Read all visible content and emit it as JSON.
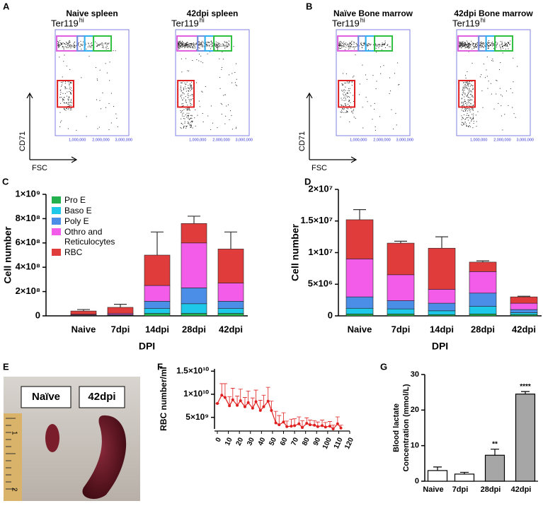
{
  "flow": {
    "panels": [
      "A",
      "B"
    ],
    "plots": [
      {
        "title": "Naive spleen"
      },
      {
        "title": "42dpi spleen"
      },
      {
        "title": "Naïve Bone marrow"
      },
      {
        "title": "42dpi Bone marrow"
      }
    ],
    "gate_label": {
      "text": "Ter119",
      "sup": "hi"
    },
    "xlabel": "FSC",
    "ylabel": "CD71",
    "xticks": [
      "1,000,000",
      "2,000,000",
      "3,000,000"
    ]
  },
  "photo": {
    "panel": "E",
    "labels": [
      "Naïve",
      "42dpi"
    ],
    "ruler": [
      "1",
      "2"
    ]
  },
  "chart_data": [
    {
      "type": "stacked_bar",
      "panel": "C",
      "categories": [
        "Naive",
        "7dpi",
        "14dpi",
        "28dpi",
        "42dpi"
      ],
      "xlabel": "DPI",
      "ylabel": "Cell number",
      "legend": true,
      "ylim": [
        0,
        1000000000
      ],
      "yticks": [
        0,
        {
          "value": 200000000,
          "label": "2×10⁸"
        },
        {
          "value": 400000000,
          "label": "4×10⁸"
        },
        {
          "value": 600000000,
          "label": "6×10⁸"
        },
        {
          "value": 800000000,
          "label": "8×10⁸"
        },
        {
          "value": 1000000000,
          "label": "1×10⁹"
        }
      ],
      "series": [
        {
          "name": "Pro E",
          "color": "#22b14c",
          "values": [
            2000000,
            2000000,
            20000000,
            20000000,
            20000000
          ]
        },
        {
          "name": "Baso E",
          "color": "#1ec8e8",
          "values": [
            3000000,
            4000000,
            40000000,
            80000000,
            40000000
          ]
        },
        {
          "name": "Poly E",
          "color": "#4a8ee8",
          "values": [
            3000000,
            4000000,
            60000000,
            130000000,
            60000000
          ]
        },
        {
          "name": "Othro and Reticulocytes",
          "color": "#f25ce8",
          "values": [
            5000000,
            10000000,
            130000000,
            370000000,
            150000000
          ],
          "errors": [
            null,
            null,
            150000000,
            120000000,
            70000000
          ]
        },
        {
          "name": "RBC",
          "color": "#e03c3c",
          "values": [
            27000000,
            50000000,
            250000000,
            160000000,
            280000000
          ],
          "errors": [
            12000000,
            25000000,
            190000000,
            60000000,
            140000000
          ]
        }
      ]
    },
    {
      "type": "stacked_bar",
      "panel": "D",
      "categories": [
        "Naive",
        "7dpi",
        "14dpi",
        "28dpi",
        "42dpi"
      ],
      "xlabel": "DPI",
      "ylabel": "Cell number",
      "legend": false,
      "ylim": [
        0,
        20000000
      ],
      "yticks": [
        0,
        {
          "value": 5000000,
          "label": "5×10⁶"
        },
        {
          "value": 10000000,
          "label": "1×10⁷"
        },
        {
          "value": 15000000,
          "label": "1.5×10⁷"
        },
        {
          "value": 20000000,
          "label": "2×10⁷"
        }
      ],
      "series": [
        {
          "color": "#22b14c",
          "values": [
            300000,
            300000,
            200000,
            300000,
            200000
          ]
        },
        {
          "color": "#1ec8e8",
          "values": [
            900000,
            800000,
            600000,
            1200000,
            300000
          ]
        },
        {
          "color": "#4a8ee8",
          "values": [
            1800000,
            1300000,
            1200000,
            2100000,
            500000
          ]
        },
        {
          "color": "#f25ce8",
          "values": [
            6000000,
            4100000,
            2200000,
            3400000,
            1000000
          ],
          "errors": [
            2000000,
            100000,
            200000,
            600000,
            200000
          ]
        },
        {
          "color": "#e03c3c",
          "values": [
            6200000,
            5000000,
            6500000,
            1500000,
            1000000
          ],
          "errors": [
            1600000,
            300000,
            1800000,
            200000,
            100000
          ]
        }
      ]
    },
    {
      "type": "line",
      "panel": "F",
      "ylabel": "RBC number/ml",
      "color": "#e02020",
      "x": [
        0,
        4,
        7,
        11,
        14,
        18,
        21,
        25,
        28,
        32,
        35,
        39,
        42,
        46,
        49,
        53,
        56,
        60,
        63,
        67,
        70,
        74,
        77,
        81,
        84,
        88,
        91,
        95,
        98,
        102,
        105,
        109,
        112
      ],
      "values": [
        8000000000,
        9800000000,
        9300000000,
        7500000000,
        8800000000,
        7600000000,
        8600000000,
        7300000000,
        8200000000,
        7000000000,
        8400000000,
        6500000000,
        7300000000,
        8500000000,
        6500000000,
        3800000000,
        3400000000,
        4000000000,
        3000000000,
        3100000000,
        3200000000,
        3600000000,
        2800000000,
        3700000000,
        3400000000,
        3300000000,
        3000000000,
        3200000000,
        2900000000,
        3100000000,
        2500000000,
        3600000000,
        2700000000
      ],
      "errors": [
        0,
        2500000000,
        3000000000,
        2000000000,
        2500000000,
        2000000000,
        2500000000,
        2000000000,
        2500000000,
        2200000000,
        2500000000,
        2200000000,
        2500000000,
        3000000000,
        2000000000,
        2500000000,
        2000000000,
        2000000000,
        1200000000,
        1500000000,
        1500000000,
        1500000000,
        1500000000,
        1200000000,
        1000000000,
        1000000000,
        1000000000,
        1200000000,
        1000000000,
        1000000000,
        800000000,
        1500000000,
        600000000
      ],
      "xlim": [
        0,
        120
      ],
      "xticks": [
        0,
        10,
        20,
        30,
        40,
        50,
        60,
        70,
        80,
        90,
        100,
        110,
        120
      ],
      "ylim": [
        2500000000,
        15500000000
      ],
      "yticks": [
        {
          "value": 5000000000,
          "label": "5×10⁹"
        },
        {
          "value": 10000000000,
          "label": "1×10¹⁰"
        },
        {
          "value": 15000000000,
          "label": "1.5×10¹⁰"
        }
      ]
    },
    {
      "type": "bar",
      "panel": "G",
      "ylabel": [
        "Blood lactate",
        "Concentration (mmol/L)"
      ],
      "categories": [
        "Naive",
        "7dpi",
        "28dpi",
        "42dpi"
      ],
      "values": [
        3,
        2,
        7.3,
        24.5
      ],
      "errors": [
        1,
        0.5,
        1.7,
        0.7
      ],
      "colors": [
        "#ffffff",
        "#ffffff",
        "#a6a6a6",
        "#a6a6a6"
      ],
      "significance": [
        null,
        null,
        "**",
        "****"
      ],
      "ylim": [
        0,
        30
      ],
      "yticks": [
        0,
        10,
        20,
        30
      ]
    }
  ]
}
